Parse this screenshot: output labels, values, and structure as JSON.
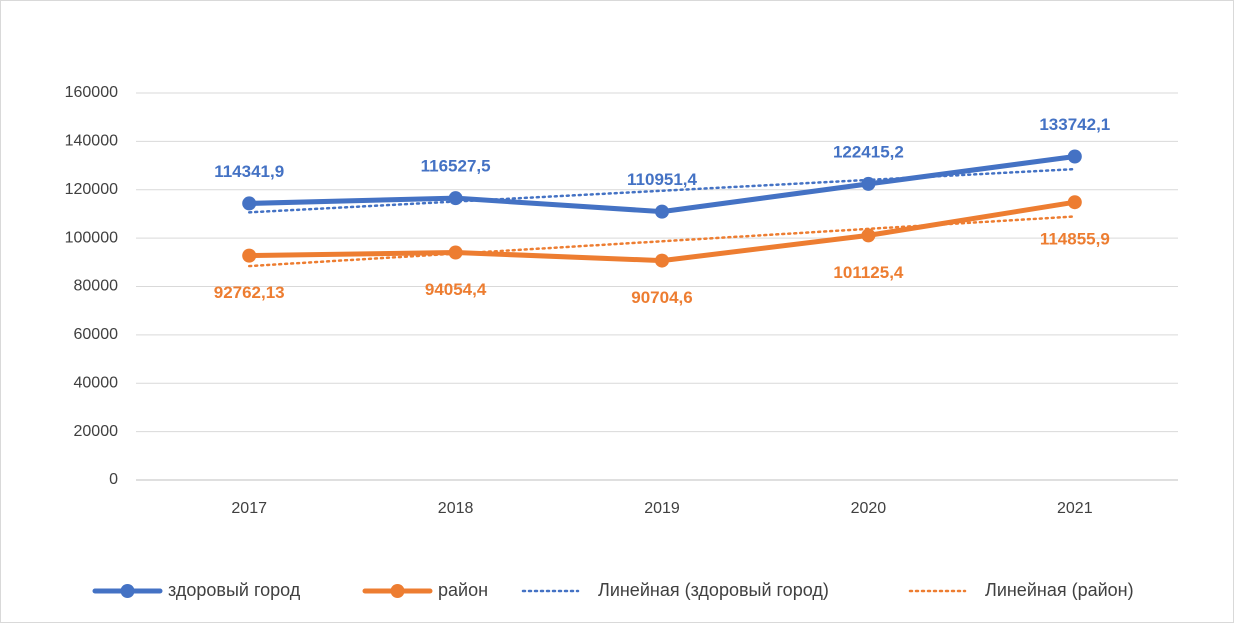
{
  "chart_data": {
    "type": "line",
    "categories": [
      "2017",
      "2018",
      "2019",
      "2020",
      "2021"
    ],
    "series": [
      {
        "name": "здоровый город",
        "color": "#4472c4",
        "values": [
          114341.9,
          116527.5,
          110951.4,
          122415.2,
          133742.1
        ],
        "value_labels": [
          "114341,9",
          "116527,5",
          "110951,4",
          "122415,2",
          "133742,1"
        ]
      },
      {
        "name": "район",
        "color": "#ed7d31",
        "values": [
          92762.13,
          94054.4,
          90704.6,
          101125.4,
          114855.9
        ],
        "value_labels": [
          "92762,13",
          "94054,4",
          "90704,6",
          "101125,4",
          "114855,9"
        ]
      },
      {
        "name": "Линейная (здоровый город)",
        "color": "#4472c4",
        "style": "dotted",
        "values": [
          110658,
          115126.8,
          119595.6,
          124064.4,
          128533.2
        ]
      },
      {
        "name": "Линейная (район)",
        "color": "#ed7d31",
        "style": "dotted",
        "values": [
          88448.8,
          93574.6,
          98700.5,
          103826.3,
          108952.2
        ]
      }
    ],
    "ylim": [
      0,
      160000
    ],
    "yticks": [
      0,
      20000,
      40000,
      60000,
      80000,
      100000,
      120000,
      140000,
      160000
    ],
    "grid": true,
    "legend": "bottom"
  }
}
